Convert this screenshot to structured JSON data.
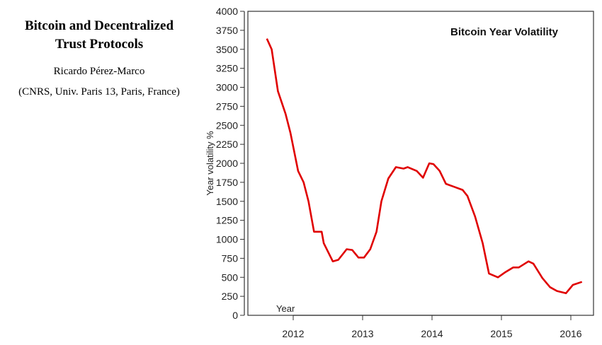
{
  "paper": {
    "title_line1": "Bitcoin and Decentralized",
    "title_line2": "Trust Protocols",
    "author": "Ricardo Pérez-Marco",
    "affiliation": "(CNRS, Univ. Paris 13, Paris, France)"
  },
  "chart_data": {
    "type": "line",
    "title": "Bitcoin Year Volatility",
    "xlabel": "Year",
    "ylabel": "Year volatility %",
    "xlim": [
      2011.35,
      2016.32
    ],
    "ylim": [
      0,
      4000
    ],
    "xticks": [
      2012,
      2013,
      2014,
      2015,
      2016
    ],
    "yticks": [
      0,
      250,
      500,
      750,
      1000,
      1250,
      1500,
      1750,
      2000,
      2250,
      2500,
      2750,
      3000,
      3250,
      3500,
      3750,
      4000
    ],
    "grid": false,
    "line_color": "#e00000",
    "series": [
      {
        "x": [
          2011.62,
          2011.69,
          2011.78,
          2011.89,
          2011.96,
          2012.07,
          2012.15,
          2012.22,
          2012.3,
          2012.41,
          2012.44,
          2012.57,
          2012.65,
          2012.77,
          2012.85,
          2012.94,
          2013.02,
          2013.11,
          2013.2,
          2013.27,
          2013.37,
          2013.48,
          2013.59,
          2013.65,
          2013.78,
          2013.87,
          2013.96,
          2014.02,
          2014.11,
          2014.2,
          2014.32,
          2014.44,
          2014.51,
          2014.62,
          2014.73,
          2014.82,
          2014.95,
          2015.06,
          2015.17,
          2015.25,
          2015.39,
          2015.46,
          2015.59,
          2015.7,
          2015.8,
          2015.93,
          2016.03,
          2016.16
        ],
        "y": [
          3640,
          3500,
          2950,
          2650,
          2400,
          1900,
          1750,
          1500,
          1100,
          1100,
          950,
          710,
          730,
          870,
          860,
          760,
          760,
          870,
          1100,
          1500,
          1800,
          1950,
          1930,
          1950,
          1900,
          1810,
          2000,
          1990,
          1900,
          1730,
          1690,
          1650,
          1570,
          1300,
          950,
          550,
          500,
          570,
          630,
          630,
          710,
          680,
          490,
          370,
          320,
          290,
          400,
          440
        ]
      }
    ]
  }
}
